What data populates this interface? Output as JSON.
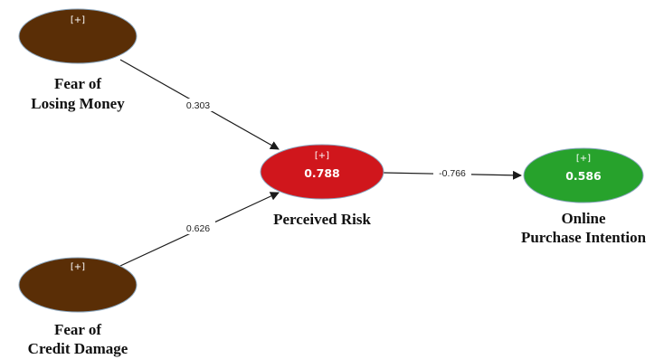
{
  "colors": {
    "exogenous": "#5a2e06",
    "perceived_risk": "#d0161c",
    "purchase_intention": "#27a22c",
    "node_stroke": "#8aa6bf",
    "arrow": "#1a1a1a"
  },
  "nodes": {
    "fear_money": {
      "expand": "[+]",
      "label_line1": "Fear of",
      "label_line2": "Losing Money"
    },
    "fear_credit": {
      "expand": "[+]",
      "label_line1": "Fear of",
      "label_line2": "Credit Damage"
    },
    "perceived_risk": {
      "expand": "[+]",
      "value": "0.788",
      "label": "Perceived Risk"
    },
    "purchase_intention": {
      "expand": "[+]",
      "value": "0.586",
      "label_line1": "Online",
      "label_line2": "Purchase Intention"
    }
  },
  "paths": {
    "money_to_risk": "0.303",
    "credit_to_risk": "0.626",
    "risk_to_intention": "-0.766"
  }
}
